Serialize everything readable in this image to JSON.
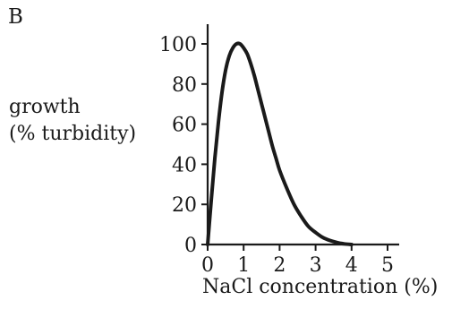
{
  "panel_label": "B",
  "chart_data": {
    "type": "line",
    "title": "",
    "xlabel": "NaCl concentration (%)",
    "ylabel_lines": [
      "growth",
      "(% turbidity)"
    ],
    "xlim": [
      0,
      5
    ],
    "ylim": [
      0,
      100
    ],
    "xticks": [
      0,
      1,
      2,
      3,
      4,
      5
    ],
    "yticks": [
      0,
      20,
      40,
      60,
      80,
      100
    ],
    "grid": false,
    "legend": "none",
    "line_color": "#1a1a1a",
    "series": [
      {
        "x": [
          0,
          0.1,
          0.2,
          0.3,
          0.4,
          0.5,
          0.6,
          0.7,
          0.8,
          0.9,
          1.0,
          1.1,
          1.2,
          1.3,
          1.4,
          1.5,
          1.6,
          1.7,
          1.8,
          1.9,
          2.0,
          2.2,
          2.4,
          2.6,
          2.8,
          3.0,
          3.2,
          3.4,
          3.6,
          3.8,
          4.0
        ],
        "y": [
          0,
          22,
          43,
          61,
          76,
          87,
          94,
          98,
          100,
          100,
          98,
          95,
          90,
          84,
          77,
          70,
          63,
          56,
          49,
          43,
          37,
          28,
          20,
          14,
          9,
          6,
          3.5,
          2,
          1,
          0.3,
          0
        ]
      }
    ]
  }
}
